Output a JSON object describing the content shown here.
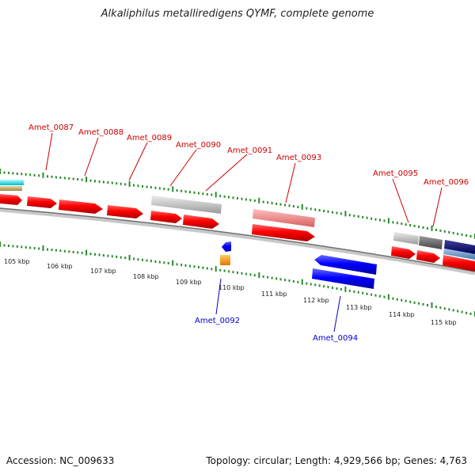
{
  "title": "Alkaliphilus metalliredigens QYMF, complete genome",
  "footer": {
    "accession": "Accession: NC_009633",
    "summary": "Topology: circular; Length: 4,929,566 bp; Genes: 4,763"
  },
  "colors": {
    "forward_gene": "#ee0000",
    "reverse_gene": "#0000ee",
    "forward_label": "#cc0000",
    "reverse_label": "#0000cc",
    "backbone": "#888888",
    "ticks": "#2a8a2a"
  },
  "kbp_ticks": [
    "105 kbp",
    "106 kbp",
    "107 kbp",
    "108 kbp",
    "109 kbp",
    "110 kbp",
    "111 kbp",
    "112 kbp",
    "113 kbp",
    "114 kbp",
    "115 kbp"
  ],
  "forward_labels": [
    "Amet_0087",
    "Amet_0088",
    "Amet_0089",
    "Amet_0090",
    "Amet_0091",
    "Amet_0093",
    "Amet_0095",
    "Amet_0096"
  ],
  "reverse_labels": [
    "Amet_0092",
    "Amet_0094"
  ]
}
